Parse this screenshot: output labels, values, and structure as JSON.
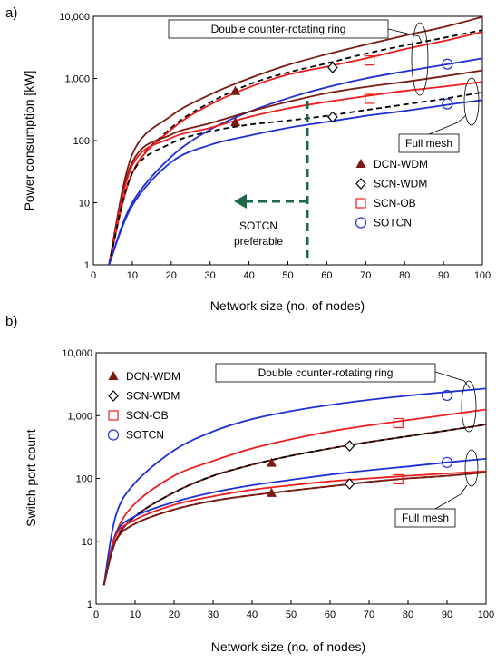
{
  "colors": {
    "DCN-WDM": "#7b1a10",
    "SCN-WDM": "#000000",
    "SCN-OB": "#ee1c1c",
    "SOTCN": "#1f2fd6",
    "preferable_arrow": "#1a6b45"
  },
  "chart_data": [
    {
      "type": "line",
      "panel_label": "a)",
      "xlabel": "Network size (no. of nodes)",
      "ylabel": "Power consumption [kW]",
      "xlim": [
        0,
        100
      ],
      "ylim": [
        1,
        10000
      ],
      "yscale": "log",
      "grid": false,
      "legend_position": "center-right",
      "x_ticks": [
        "0",
        "10",
        "20",
        "30",
        "40",
        "50",
        "60",
        "70",
        "80",
        "90",
        "100"
      ],
      "y_ticks": [
        "1",
        "10",
        "100",
        "1,000",
        "10,000"
      ],
      "x": [
        4,
        10,
        20,
        30,
        40,
        50,
        60,
        70,
        80,
        90,
        100
      ],
      "series": [
        {
          "name": "DCN-WDM",
          "topology": "Double counter-rotating ring",
          "values": [
            1,
            60,
            250,
            550,
            1000,
            1650,
            2450,
            3500,
            4900,
            6700,
            9800
          ]
        },
        {
          "name": "SCN-WDM",
          "topology": "Double counter-rotating ring",
          "values": [
            1,
            30,
            160,
            410,
            800,
            1250,
            1750,
            2500,
            3400,
            4500,
            6000
          ]
        },
        {
          "name": "SCN-OB",
          "topology": "Double counter-rotating ring",
          "values": [
            1,
            30,
            150,
            380,
            720,
            1150,
            1550,
            2100,
            2950,
            4000,
            5600
          ]
        },
        {
          "name": "SOTCN",
          "topology": "Double counter-rotating ring",
          "values": [
            1,
            10,
            55,
            150,
            290,
            480,
            720,
            1000,
            1300,
            1650,
            2100
          ]
        },
        {
          "name": "DCN-WDM",
          "topology": "Full mesh",
          "values": [
            1,
            45,
            125,
            190,
            290,
            420,
            580,
            730,
            880,
            1080,
            1350
          ]
        },
        {
          "name": "SCN-OB",
          "topology": "Full mesh",
          "values": [
            1,
            40,
            110,
            160,
            240,
            330,
            420,
            520,
            630,
            740,
            880
          ]
        },
        {
          "name": "SCN-WDM",
          "topology": "Full mesh",
          "values": [
            1,
            30,
            90,
            140,
            180,
            210,
            250,
            310,
            380,
            470,
            600
          ]
        },
        {
          "name": "SOTCN",
          "topology": "Full mesh",
          "values": [
            1,
            9,
            45,
            85,
            120,
            160,
            200,
            250,
            300,
            370,
            450
          ]
        }
      ],
      "markers": [
        {
          "series": "DCN-WDM",
          "x": 36.5,
          "y": 620
        },
        {
          "series": "DCN-WDM",
          "x": 36.5,
          "y": 195
        },
        {
          "series": "SCN-WDM",
          "x": 61.5,
          "y": 1500
        },
        {
          "series": "SCN-WDM",
          "x": 61.5,
          "y": 240
        },
        {
          "series": "SCN-OB",
          "x": 71,
          "y": 1950
        },
        {
          "series": "SCN-OB",
          "x": 71,
          "y": 470
        },
        {
          "series": "SOTCN",
          "x": 91,
          "y": 1700
        },
        {
          "series": "SOTCN",
          "x": 91,
          "y": 390
        }
      ],
      "annotations": {
        "ring_label": "Double counter-rotating ring",
        "mesh_label": "Full mesh",
        "threshold_x": 55,
        "preferable_line1": "SOTCN",
        "preferable_line2": "preferable"
      },
      "legend": [
        "DCN-WDM",
        "SCN-WDM",
        "SCN-OB",
        "SOTCN"
      ]
    },
    {
      "type": "line",
      "panel_label": "b)",
      "xlabel": "Network size (no. of nodes)",
      "ylabel": "Switch port count",
      "xlim": [
        0,
        100
      ],
      "ylim": [
        1,
        10000
      ],
      "yscale": "log",
      "grid": false,
      "legend_position": "top-left",
      "x_ticks": [
        "0",
        "10",
        "20",
        "30",
        "40",
        "50",
        "60",
        "70",
        "80",
        "90",
        "100"
      ],
      "y_ticks": [
        "1",
        "10",
        "100",
        "1,000",
        "10,000"
      ],
      "x": [
        2,
        5,
        10,
        20,
        30,
        40,
        50,
        60,
        70,
        80,
        90,
        100
      ],
      "series": [
        {
          "name": "SOTCN",
          "topology": "Double counter-rotating ring",
          "values": [
            2,
            25,
            85,
            280,
            560,
            880,
            1180,
            1480,
            1780,
            2080,
            2380,
            2700
          ]
        },
        {
          "name": "SCN-OB",
          "topology": "Double counter-rotating ring",
          "values": [
            2,
            13,
            40,
            110,
            190,
            300,
            420,
            560,
            700,
            850,
            1030,
            1250
          ]
        },
        {
          "name": "DCN-WDM",
          "topology": "Double counter-rotating ring",
          "values": [
            2,
            10,
            25,
            60,
            110,
            165,
            230,
            300,
            380,
            470,
            580,
            720
          ]
        },
        {
          "name": "SCN-WDM",
          "topology": "Double counter-rotating ring",
          "values": [
            2,
            10,
            25,
            60,
            110,
            165,
            230,
            300,
            380,
            470,
            580,
            720
          ]
        },
        {
          "name": "SOTCN",
          "topology": "Full mesh",
          "values": [
            2,
            13,
            25,
            42,
            60,
            78,
            95,
            115,
            135,
            155,
            180,
            205
          ]
        },
        {
          "name": "SCN-OB",
          "topology": "Full mesh",
          "values": [
            2,
            12,
            22,
            38,
            52,
            66,
            78,
            90,
            100,
            110,
            120,
            130
          ]
        },
        {
          "name": "SCN-WDM",
          "topology": "Full mesh",
          "values": [
            2,
            10,
            19,
            32,
            44,
            54,
            64,
            75,
            88,
            100,
            110,
            125
          ]
        },
        {
          "name": "DCN-WDM",
          "topology": "Full mesh",
          "values": [
            2,
            10,
            19,
            32,
            44,
            54,
            64,
            75,
            88,
            100,
            110,
            125
          ]
        }
      ],
      "markers": [
        {
          "series": "DCN-WDM",
          "x": 45,
          "y": 175
        },
        {
          "series": "DCN-WDM",
          "x": 45,
          "y": 58
        },
        {
          "series": "SCN-WDM",
          "x": 65,
          "y": 330
        },
        {
          "series": "SCN-WDM",
          "x": 65,
          "y": 82
        },
        {
          "series": "SCN-OB",
          "x": 77.5,
          "y": 760
        },
        {
          "series": "SCN-OB",
          "x": 77.5,
          "y": 97
        },
        {
          "series": "SOTCN",
          "x": 90,
          "y": 2100
        },
        {
          "series": "SOTCN",
          "x": 90,
          "y": 180
        }
      ],
      "annotations": {
        "ring_label": "Double counter-rotating ring",
        "mesh_label": "Full mesh"
      },
      "legend": [
        "DCN-WDM",
        "SCN-WDM",
        "SCN-OB",
        "SOTCN"
      ]
    }
  ]
}
